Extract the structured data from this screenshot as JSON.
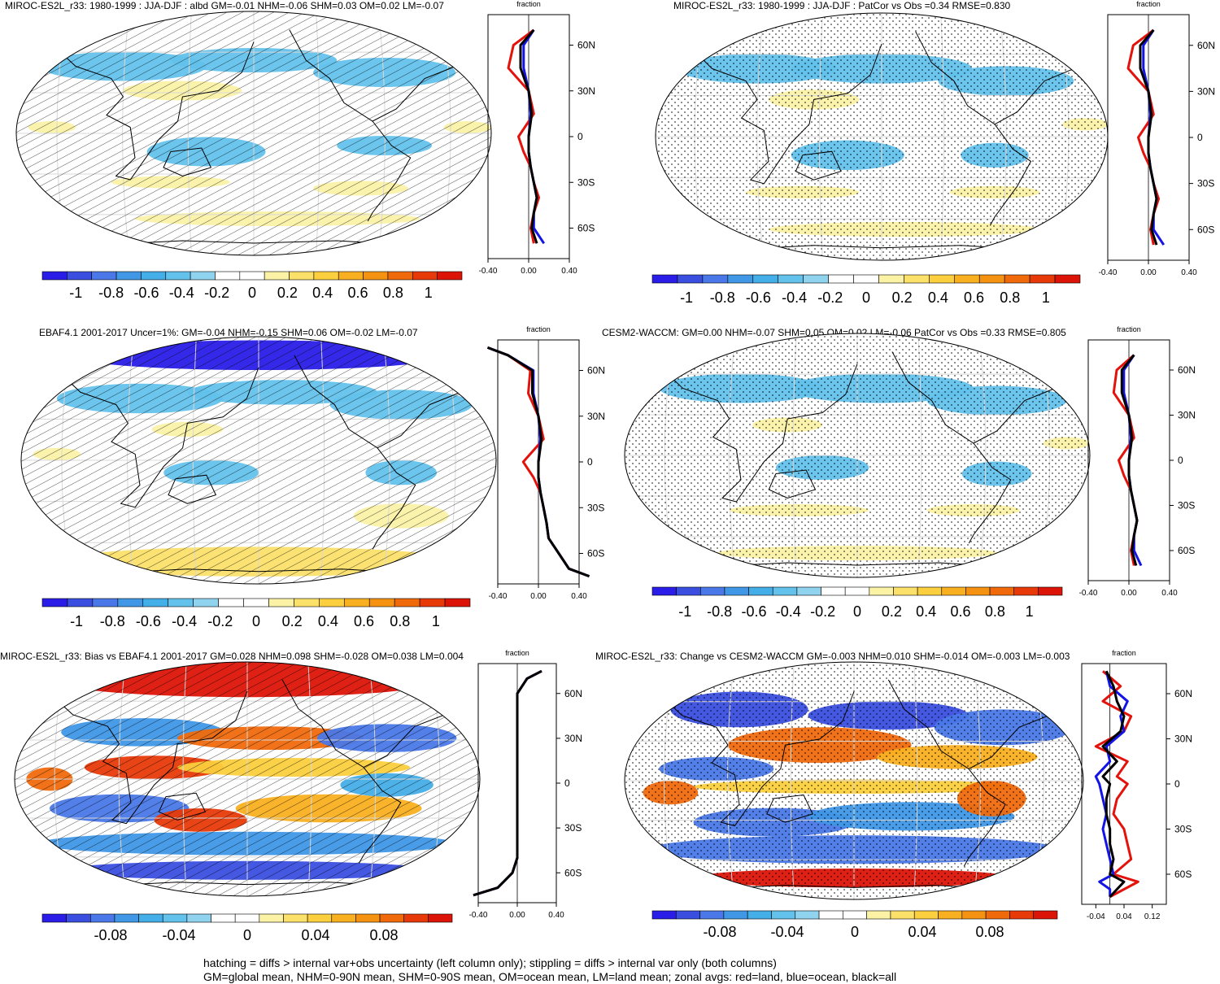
{
  "footer": {
    "line1": "hatching = diffs > internal var+obs uncertainty (left column only); stippling = diffs > internal var only (both columns)",
    "line2": "GM=global mean, NHM=0-90N mean, SHM=0-90S mean, OM=ocean mean, LM=land mean; zonal avgs: red=land, blue=ocean, black=all"
  },
  "panels": [
    {
      "title": "MIROC-ES2L_r33: 1980-1999 : JJA-DJF : albd GM=-0.01 NHM=-0.06 SHM=0.03 OM=0.02 LM=-0.07",
      "pattern": "hatch",
      "colorbar_labels": [
        "-1",
        "-0.8",
        "-0.6",
        "-0.4",
        "-0.2",
        "0",
        "0.2",
        "0.4",
        "0.6",
        "0.8",
        "1"
      ],
      "zonal_title": "fraction",
      "zonal_ticks": [
        "-0.40",
        "0.00",
        "0.40"
      ],
      "lat_labels": [
        "60N",
        "30N",
        "0",
        "30S",
        "60S"
      ]
    },
    {
      "title": "MIROC-ES2L_r33: 1980-1999 : JJA-DJF : PatCor vs Obs =0.34 RMSE=0.830",
      "pattern": "stipple",
      "colorbar_labels": [
        "-1",
        "-0.8",
        "-0.6",
        "-0.4",
        "-0.2",
        "0",
        "0.2",
        "0.4",
        "0.6",
        "0.8",
        "1"
      ],
      "zonal_title": "fraction",
      "zonal_ticks": [
        "-0.40",
        "0.00",
        "0.40"
      ],
      "lat_labels": [
        "60N",
        "30N",
        "0",
        "30S",
        "60S"
      ]
    },
    {
      "title": "EBAF4.1 2001-2017 Uncer=1%: GM=-0.04 NHM=-0.15 SHM=0.06 OM=-0.02 LM=-0.07",
      "pattern": "hatch",
      "colorbar_labels": [
        "-1",
        "-0.8",
        "-0.6",
        "-0.4",
        "-0.2",
        "0",
        "0.2",
        "0.4",
        "0.6",
        "0.8",
        "1"
      ],
      "zonal_title": "fraction",
      "zonal_ticks": [
        "-0.40",
        "0.00",
        "0.40"
      ],
      "lat_labels": [
        "60N",
        "30N",
        "0",
        "30S",
        "60S"
      ]
    },
    {
      "title": "CESM2-WACCM: GM=0.00 NHM=-0.07 SHM=0.05 OM=0.02 LM=-0.06 PatCor vs Obs =0.33 RMSE=0.805",
      "pattern": "stipple",
      "colorbar_labels": [
        "-1",
        "-0.8",
        "-0.6",
        "-0.4",
        "-0.2",
        "0",
        "0.2",
        "0.4",
        "0.6",
        "0.8",
        "1"
      ],
      "zonal_title": "fraction",
      "zonal_ticks": [
        "-0.40",
        "0.00",
        "0.40"
      ],
      "lat_labels": [
        "60N",
        "30N",
        "0",
        "30S",
        "60S"
      ]
    },
    {
      "title": "MIROC-ES2L_r33: Bias vs EBAF4.1 2001-2017 GM=0.028 NHM=0.098 SHM=-0.028 OM=0.038 LM=0.004",
      "pattern": "hatch",
      "colorbar_labels": [
        "-0.08",
        "-0.04",
        "0",
        "0.04",
        "0.08"
      ],
      "zonal_title": "fraction",
      "zonal_ticks": [
        "-0.40",
        "0.00",
        "0.40"
      ],
      "lat_labels": [
        "60N",
        "30N",
        "0",
        "30S",
        "60S"
      ]
    },
    {
      "title": "MIROC-ES2L_r33: Change vs CESM2-WACCM GM=-0.003 NHM=0.010 SHM=-0.014 OM=-0.003 LM=-0.003",
      "pattern": "stipple",
      "colorbar_labels": [
        "-0.08",
        "-0.04",
        "0",
        "0.04",
        "0.08"
      ],
      "zonal_title": "fraction",
      "zonal_ticks": [
        "-0.04",
        "0.04",
        "0.12"
      ],
      "lat_labels": [
        "60N",
        "30N",
        "0",
        "30S",
        "60S"
      ]
    }
  ],
  "colors": {
    "palette": [
      "#2a1de8",
      "#3a4fe0",
      "#4a78e8",
      "#3f97e6",
      "#44aee8",
      "#63c2ec",
      "#8fd3ef",
      "#ffffff",
      "#ffffff",
      "#fbf2a6",
      "#fbe06a",
      "#fbcf3d",
      "#f9b020",
      "#f69212",
      "#f06a0c",
      "#e83a08",
      "#dc1408"
    ],
    "land": "#e3120b",
    "ocean": "#1414e6",
    "all": "#000000"
  },
  "chart_data": [
    {
      "type": "heatmap",
      "title": "MIROC-ES2L_r33: 1980-1999 : JJA-DJF : albd GM=-0.01 NHM=-0.06 SHM=0.03 OM=0.02 LM=-0.07",
      "colorbar_range": [
        -1,
        1
      ],
      "zonal_x_range": [
        -0.4,
        0.4
      ],
      "zonal_series": [
        {
          "name": "land",
          "lat": [
            70,
            60,
            45,
            30,
            15,
            0,
            -10,
            -20,
            -30,
            -40,
            -50,
            -60,
            -70
          ],
          "values": [
            0.05,
            -0.15,
            -0.2,
            0.0,
            0.05,
            -0.1,
            -0.05,
            0.02,
            0.05,
            0.1,
            0.05,
            0.02,
            0.05
          ]
        },
        {
          "name": "ocean",
          "lat": [
            70,
            60,
            45,
            30,
            15,
            0,
            -10,
            -20,
            -30,
            -40,
            -50,
            -60,
            -70
          ],
          "values": [
            0.05,
            -0.05,
            -0.05,
            0.0,
            0.02,
            0.0,
            0.0,
            0.02,
            0.05,
            0.08,
            0.05,
            0.05,
            0.15
          ]
        },
        {
          "name": "all",
          "lat": [
            70,
            60,
            45,
            30,
            15,
            0,
            -10,
            -20,
            -30,
            -40,
            -50,
            -60,
            -70
          ],
          "values": [
            0.05,
            -0.08,
            -0.08,
            0.0,
            0.03,
            0.0,
            0.0,
            0.02,
            0.05,
            0.08,
            0.05,
            0.03,
            0.08
          ]
        }
      ]
    },
    {
      "type": "heatmap",
      "title": "MIROC-ES2L_r33: 1980-1999 : JJA-DJF : PatCor vs Obs =0.34 RMSE=0.830",
      "colorbar_range": [
        -1,
        1
      ],
      "zonal_x_range": [
        -0.4,
        0.4
      ],
      "zonal_series": [
        {
          "name": "land",
          "lat": [
            70,
            60,
            45,
            30,
            15,
            0,
            -10,
            -20,
            -30,
            -40,
            -50,
            -60,
            -70
          ],
          "values": [
            0.05,
            -0.15,
            -0.2,
            0.0,
            0.05,
            -0.1,
            -0.05,
            0.02,
            0.05,
            0.1,
            0.05,
            0.02,
            0.05
          ]
        },
        {
          "name": "ocean",
          "lat": [
            70,
            60,
            45,
            30,
            15,
            0,
            -10,
            -20,
            -30,
            -40,
            -50,
            -60,
            -70
          ],
          "values": [
            0.05,
            -0.05,
            -0.05,
            0.0,
            0.02,
            0.0,
            0.0,
            0.02,
            0.05,
            0.08,
            0.05,
            0.05,
            0.15
          ]
        },
        {
          "name": "all",
          "lat": [
            70,
            60,
            45,
            30,
            15,
            0,
            -10,
            -20,
            -30,
            -40,
            -50,
            -60,
            -70
          ],
          "values": [
            0.05,
            -0.08,
            -0.08,
            0.0,
            0.03,
            0.0,
            0.0,
            0.02,
            0.05,
            0.08,
            0.05,
            0.03,
            0.08
          ]
        }
      ]
    },
    {
      "type": "heatmap",
      "title": "EBAF4.1 2001-2017 Uncer=1%: GM=-0.04 NHM=-0.15 SHM=0.06 OM=-0.02 LM=-0.07",
      "colorbar_range": [
        -1,
        1
      ],
      "zonal_x_range": [
        -0.4,
        0.4
      ],
      "zonal_series": [
        {
          "name": "land",
          "lat": [
            75,
            70,
            60,
            45,
            30,
            15,
            0,
            -10,
            -20,
            -30,
            -40,
            -50,
            -60,
            -70,
            -75
          ],
          "values": [
            -0.5,
            -0.3,
            -0.08,
            -0.1,
            0.0,
            0.05,
            -0.15,
            -0.05,
            0.02,
            0.05,
            0.08,
            0.1,
            0.2,
            0.3,
            0.5
          ]
        },
        {
          "name": "ocean",
          "lat": [
            75,
            70,
            60,
            45,
            30,
            15,
            0,
            -10,
            -20,
            -30,
            -40,
            -50,
            -60,
            -70,
            -75
          ],
          "values": [
            -0.5,
            -0.3,
            -0.05,
            -0.05,
            0.0,
            0.02,
            0.0,
            0.0,
            0.02,
            0.05,
            0.08,
            0.1,
            0.2,
            0.3,
            0.5
          ]
        },
        {
          "name": "all",
          "lat": [
            75,
            70,
            60,
            45,
            30,
            15,
            0,
            -10,
            -20,
            -30,
            -40,
            -50,
            -60,
            -70,
            -75
          ],
          "values": [
            -0.5,
            -0.3,
            -0.06,
            -0.06,
            0.0,
            0.03,
            0.0,
            0.0,
            0.02,
            0.05,
            0.08,
            0.1,
            0.2,
            0.3,
            0.5
          ]
        }
      ]
    },
    {
      "type": "heatmap",
      "title": "CESM2-WACCM: GM=0.00 NHM=-0.07 SHM=0.05 OM=0.02 LM=-0.06 PatCor vs Obs =0.33 RMSE=0.805",
      "colorbar_range": [
        -1,
        1
      ],
      "zonal_x_range": [
        -0.4,
        0.4
      ],
      "zonal_series": [
        {
          "name": "land",
          "lat": [
            70,
            60,
            45,
            30,
            15,
            0,
            -10,
            -20,
            -30,
            -40,
            -50,
            -60,
            -70
          ],
          "values": [
            0.05,
            -0.12,
            -0.15,
            0.0,
            0.05,
            -0.1,
            -0.05,
            0.02,
            0.05,
            0.08,
            0.05,
            0.02,
            0.05
          ]
        },
        {
          "name": "ocean",
          "lat": [
            70,
            60,
            45,
            30,
            15,
            0,
            -10,
            -20,
            -30,
            -40,
            -50,
            -60,
            -70
          ],
          "values": [
            0.05,
            -0.05,
            -0.05,
            0.0,
            0.02,
            0.0,
            0.0,
            0.02,
            0.05,
            0.08,
            0.05,
            0.05,
            0.12
          ]
        },
        {
          "name": "all",
          "lat": [
            70,
            60,
            45,
            30,
            15,
            0,
            -10,
            -20,
            -30,
            -40,
            -50,
            -60,
            -70
          ],
          "values": [
            0.05,
            -0.07,
            -0.07,
            0.0,
            0.03,
            0.0,
            0.0,
            0.02,
            0.05,
            0.08,
            0.05,
            0.03,
            0.07
          ]
        }
      ]
    },
    {
      "type": "heatmap",
      "title": "MIROC-ES2L_r33: Bias vs EBAF4.1 2001-2017 GM=0.028 NHM=0.098 SHM=-0.028 OM=0.038 LM=0.004",
      "colorbar_range": [
        -0.1,
        0.1
      ],
      "zonal_x_range": [
        -0.4,
        0.4
      ],
      "zonal_series": [
        {
          "name": "land",
          "lat": [
            75,
            70,
            60,
            45,
            30,
            15,
            0,
            -10,
            -20,
            -30,
            -40,
            -50,
            -60,
            -70,
            -75
          ],
          "values": [
            0.25,
            0.1,
            0.0,
            0.0,
            0.0,
            0.0,
            0.0,
            0.0,
            0.0,
            0.0,
            0.0,
            0.0,
            -0.05,
            -0.2,
            -0.45
          ]
        },
        {
          "name": "ocean",
          "lat": [
            75,
            70,
            60,
            45,
            30,
            15,
            0,
            -10,
            -20,
            -30,
            -40,
            -50,
            -60,
            -70,
            -75
          ],
          "values": [
            0.25,
            0.1,
            0.0,
            0.0,
            0.0,
            0.0,
            0.0,
            0.0,
            0.0,
            0.0,
            0.0,
            0.0,
            -0.05,
            -0.2,
            -0.45
          ]
        },
        {
          "name": "all",
          "lat": [
            75,
            70,
            60,
            45,
            30,
            15,
            0,
            -10,
            -20,
            -30,
            -40,
            -50,
            -60,
            -70,
            -75
          ],
          "values": [
            0.25,
            0.1,
            0.0,
            0.0,
            0.0,
            0.0,
            0.0,
            0.0,
            0.0,
            0.0,
            0.0,
            0.0,
            -0.05,
            -0.2,
            -0.45
          ]
        }
      ]
    },
    {
      "type": "heatmap",
      "title": "MIROC-ES2L_r33: Change vs CESM2-WACCM GM=-0.003 NHM=0.010 SHM=-0.014 OM=-0.003 LM=-0.003",
      "colorbar_range": [
        -0.1,
        0.1
      ],
      "zonal_x_range": [
        -0.08,
        0.16
      ],
      "zonal_series": [
        {
          "name": "land",
          "lat": [
            75,
            65,
            55,
            45,
            35,
            25,
            15,
            5,
            0,
            -10,
            -20,
            -30,
            -40,
            -50,
            -60,
            -65,
            -70,
            -75
          ],
          "values": [
            -0.02,
            0.03,
            -0.02,
            0.06,
            0.04,
            -0.04,
            0.05,
            0.02,
            0.05,
            0.02,
            0.01,
            0.04,
            0.05,
            0.06,
            0.01,
            0.08,
            0.04,
            0.0
          ]
        },
        {
          "name": "ocean",
          "lat": [
            75,
            65,
            55,
            45,
            35,
            25,
            15,
            5,
            0,
            -10,
            -20,
            -30,
            -40,
            -50,
            -60,
            -65,
            -70,
            -75
          ],
          "values": [
            -0.01,
            0.0,
            0.05,
            0.03,
            0.04,
            -0.01,
            0.0,
            -0.04,
            -0.03,
            -0.02,
            -0.01,
            -0.02,
            -0.01,
            0.0,
            0.01,
            -0.03,
            0.0,
            0.0
          ]
        },
        {
          "name": "all",
          "lat": [
            75,
            65,
            55,
            45,
            35,
            25,
            15,
            5,
            0,
            -10,
            -20,
            -30,
            -40,
            -50,
            -60,
            -65,
            -70,
            -75
          ],
          "values": [
            -0.01,
            0.01,
            0.02,
            0.04,
            0.03,
            -0.02,
            0.02,
            -0.02,
            0.0,
            -0.01,
            -0.01,
            0.0,
            0.0,
            0.01,
            0.0,
            0.04,
            0.02,
            0.0
          ]
        }
      ]
    }
  ]
}
